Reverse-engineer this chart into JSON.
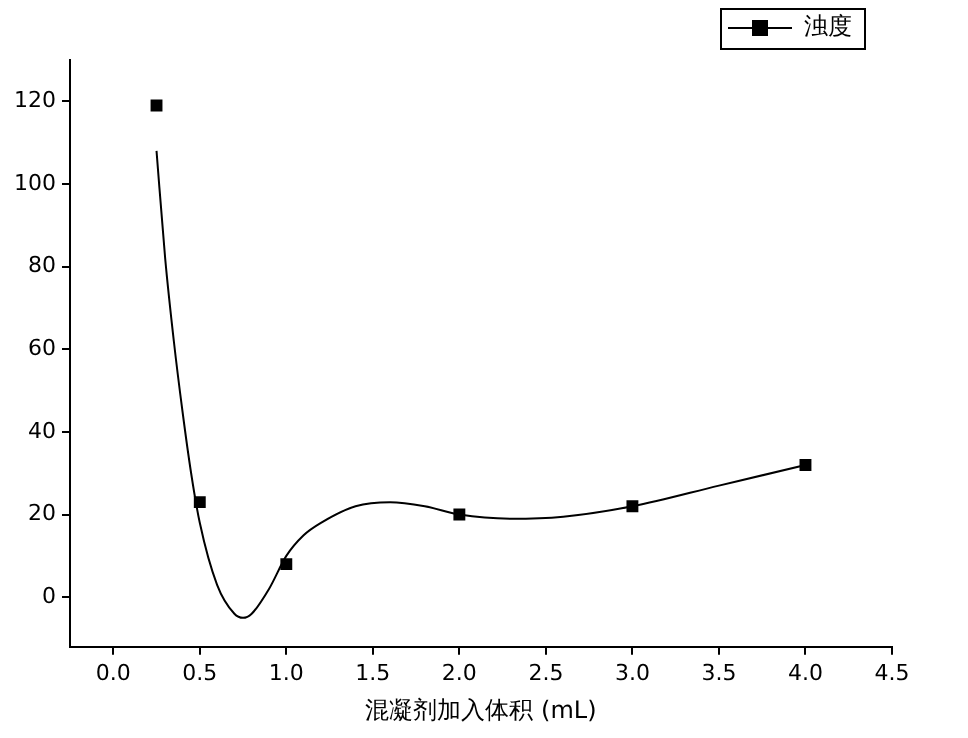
{
  "chart_data": {
    "type": "scatter",
    "xlabel": "混凝剂加入体积 (mL)",
    "xlim": [
      -0.25,
      4.5
    ],
    "xticks": [
      {
        "value": 0,
        "label": "0.0"
      },
      {
        "value": 0.5,
        "label": "0.5"
      },
      {
        "value": 1,
        "label": "1.0"
      },
      {
        "value": 1.5,
        "label": "1.5"
      },
      {
        "value": 2,
        "label": "2.0"
      },
      {
        "value": 2.5,
        "label": "2.5"
      },
      {
        "value": 3,
        "label": "3.0"
      },
      {
        "value": 3.5,
        "label": "3.5"
      },
      {
        "value": 4,
        "label": "4.0"
      },
      {
        "value": 4.5,
        "label": "4.5"
      }
    ],
    "ylim": [
      -12,
      130
    ],
    "yticks": [
      0,
      20,
      40,
      60,
      80,
      100,
      120
    ],
    "grid": false,
    "legend": "top right",
    "series": [
      {
        "name": "浊度",
        "type": "scatter",
        "marker": "square",
        "color": "#000000",
        "x": [
          0.25,
          0.5,
          1.0,
          2.0,
          3.0,
          4.0
        ],
        "values": [
          119,
          23,
          8,
          20,
          22,
          32
        ]
      },
      {
        "type": "line",
        "color": "#000000",
        "x": [
          0.25,
          0.3,
          0.35,
          0.4,
          0.45,
          0.5,
          0.6,
          0.7,
          0.75,
          0.8,
          0.9,
          1.0,
          1.1,
          1.2,
          1.4,
          1.6,
          1.8,
          2.0,
          2.3,
          2.6,
          3.0,
          3.5,
          4.0
        ],
        "values": [
          108,
          82,
          62,
          45,
          30,
          18,
          3,
          -4,
          -5,
          -4,
          2,
          10,
          15,
          18,
          22,
          23,
          22,
          20,
          19,
          19.5,
          22,
          27,
          32
        ]
      }
    ]
  }
}
